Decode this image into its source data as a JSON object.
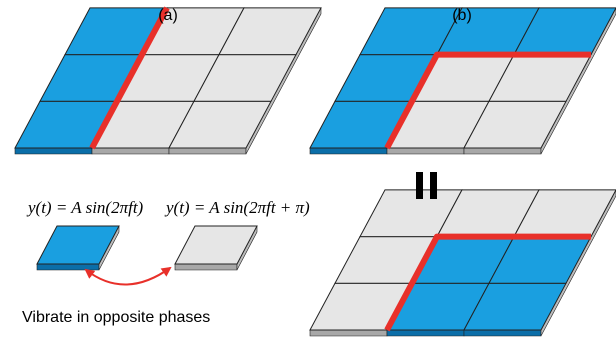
{
  "labels": {
    "a": "(a)",
    "b": "(b)"
  },
  "equations": [
    "y(t) = A sin(2πft)",
    "y(t) = A sin(2πft + π)"
  ],
  "caption": "Vibrate in opposite phases"
}
